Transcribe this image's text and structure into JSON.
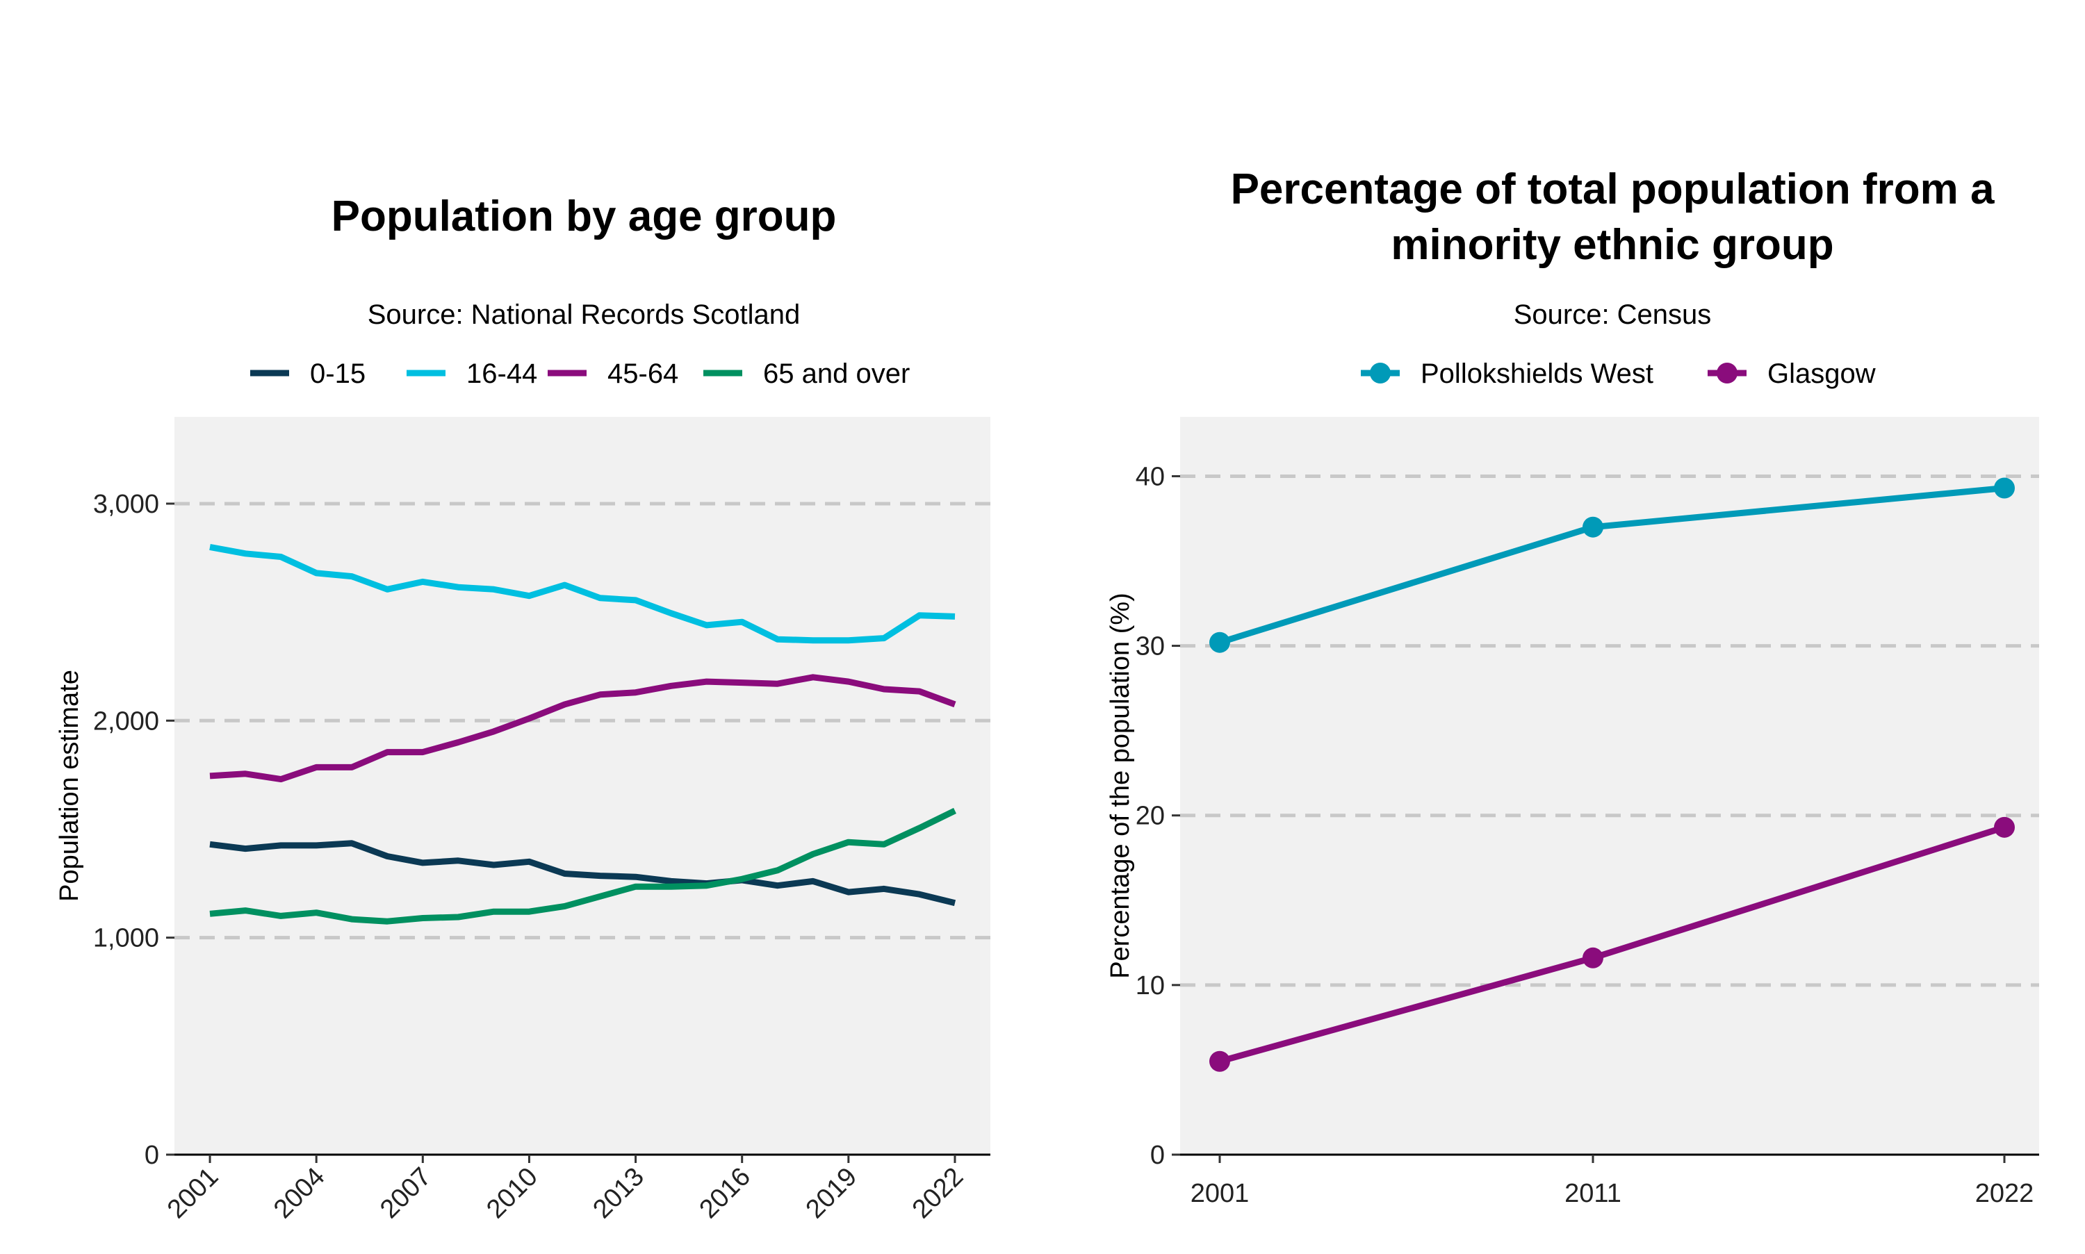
{
  "chart_data": [
    {
      "type": "line",
      "title": "Population by age group",
      "subtitle": "Source: National Records Scotland",
      "xlabel": "",
      "ylabel": "Population estimate",
      "xlim": [
        2000,
        2023
      ],
      "ylim": [
        0,
        3400
      ],
      "yticks": [
        0,
        1000,
        2000,
        3000
      ],
      "ytick_labels": [
        "0",
        "1,000",
        "2,000",
        "3,000"
      ],
      "xticks": [
        "2001",
        "2004",
        "2007",
        "2010",
        "2013",
        "2016",
        "2019",
        "2022"
      ],
      "x": [
        2001,
        2002,
        2003,
        2004,
        2005,
        2006,
        2007,
        2008,
        2009,
        2010,
        2011,
        2012,
        2013,
        2014,
        2015,
        2016,
        2017,
        2018,
        2019,
        2020,
        2021,
        2022
      ],
      "series": [
        {
          "name": "0-15",
          "color": "#0b3954",
          "values": [
            1430,
            1410,
            1425,
            1425,
            1435,
            1375,
            1345,
            1355,
            1335,
            1350,
            1295,
            1285,
            1280,
            1260,
            1250,
            1265,
            1240,
            1260,
            1210,
            1225,
            1200,
            1160
          ]
        },
        {
          "name": "16-44",
          "color": "#00bfe0",
          "values": [
            2800,
            2770,
            2755,
            2680,
            2665,
            2605,
            2640,
            2615,
            2605,
            2575,
            2625,
            2565,
            2555,
            2495,
            2440,
            2455,
            2375,
            2370,
            2370,
            2380,
            2485,
            2480
          ]
        },
        {
          "name": "45-64",
          "color": "#8a0c7c",
          "values": [
            1745,
            1755,
            1730,
            1785,
            1785,
            1855,
            1855,
            1900,
            1950,
            2010,
            2075,
            2120,
            2130,
            2160,
            2180,
            2175,
            2170,
            2200,
            2180,
            2145,
            2135,
            2075
          ]
        },
        {
          "name": "65 and over",
          "color": "#009060",
          "values": [
            1110,
            1125,
            1100,
            1115,
            1085,
            1075,
            1090,
            1095,
            1120,
            1120,
            1145,
            1190,
            1235,
            1235,
            1240,
            1270,
            1310,
            1385,
            1440,
            1430,
            1505,
            1585
          ]
        }
      ]
    },
    {
      "type": "line",
      "title": "Percentage of total population from a minority ethnic group",
      "title_lines": [
        "Percentage of total population from a",
        "minority ethnic group"
      ],
      "subtitle": "Source: Census",
      "xlabel": "",
      "ylabel": "Percentage of the population (%)",
      "ylim": [
        0,
        43.5
      ],
      "yticks": [
        0,
        10,
        20,
        30,
        40
      ],
      "ytick_labels": [
        "0",
        "10",
        "20",
        "30",
        "40"
      ],
      "xticks": [
        "2001",
        "2011",
        "2022"
      ],
      "x": [
        2001,
        2011,
        2022
      ],
      "series": [
        {
          "name": "Pollokshields West",
          "color": "#009ab8",
          "values": [
            30.2,
            37.0,
            39.3
          ]
        },
        {
          "name": "Glasgow",
          "color": "#8a0c7c",
          "values": [
            5.5,
            11.6,
            19.3
          ]
        }
      ]
    }
  ]
}
